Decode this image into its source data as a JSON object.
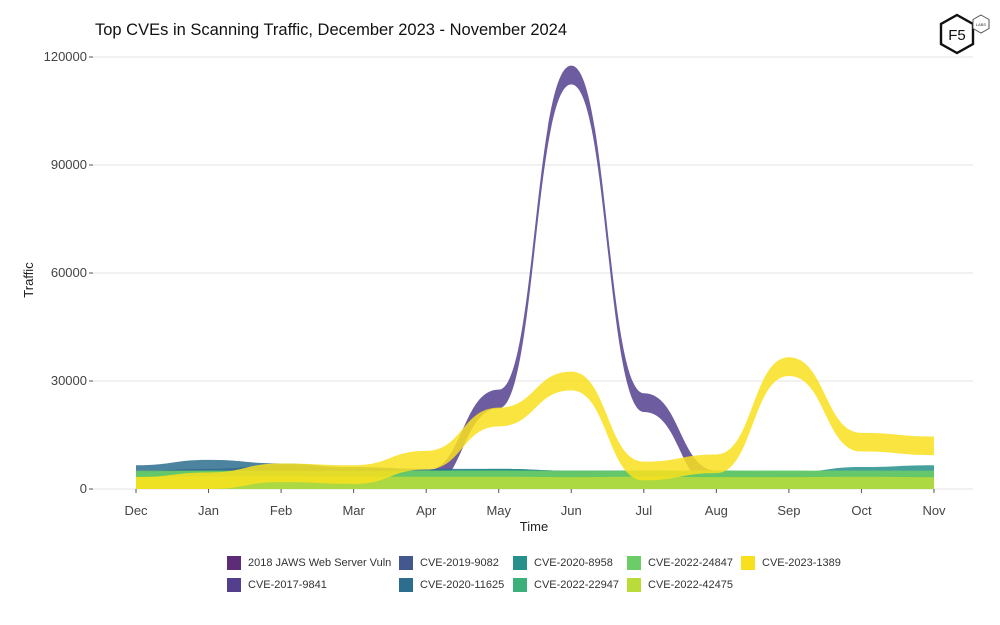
{
  "brand": {
    "logo_text": "F5",
    "logo_subtext": "LABS"
  },
  "chart_data": {
    "type": "area",
    "title": "Top CVEs in Scanning Traffic, December 2023 - November 2024",
    "xlabel": "Time",
    "ylabel": "Traffic",
    "ylim": [
      0,
      120000
    ],
    "yticks": [
      "0",
      "30000",
      "60000",
      "90000",
      "120000"
    ],
    "grid": true,
    "legend_position": "bottom",
    "categories": [
      "Dec",
      "Jan",
      "Feb",
      "Mar",
      "Apr",
      "May",
      "Jun",
      "Jul",
      "Aug",
      "Sep",
      "Oct",
      "Nov"
    ],
    "series": [
      {
        "name": "2018 JAWS Web Server Vuln",
        "color": "#5c2c76",
        "values": [
          1000,
          1500,
          2000,
          1500,
          1200,
          1000,
          900,
          1000,
          2500,
          1500,
          1000,
          800
        ]
      },
      {
        "name": "CVE-2017-9841",
        "color": "#533f8e",
        "values": [
          2500,
          3000,
          4000,
          3000,
          2500,
          25000,
          115000,
          24000,
          2500,
          2000,
          1500,
          1200
        ]
      },
      {
        "name": "CVE-2019-9082",
        "color": "#42588f",
        "values": [
          1500,
          2000,
          1500,
          1200,
          1000,
          1500,
          1000,
          1200,
          1000,
          800,
          700,
          600
        ]
      },
      {
        "name": "CVE-2020-11625",
        "color": "#2d6e8e",
        "values": [
          4000,
          5500,
          4500,
          3500,
          3000,
          3000,
          2500,
          2500,
          2000,
          2000,
          1800,
          1500
        ]
      },
      {
        "name": "CVE-2020-8958",
        "color": "#26918b",
        "values": [
          2000,
          2500,
          2000,
          2000,
          2500,
          3000,
          2500,
          2500,
          2000,
          2000,
          3500,
          4000
        ]
      },
      {
        "name": "CVE-2022-22947",
        "color": "#3bb07a",
        "values": [
          2000,
          2500,
          2000,
          2000,
          2500,
          2500,
          2000,
          2500,
          2500,
          2500,
          2000,
          2000
        ]
      },
      {
        "name": "CVE-2022-24847",
        "color": "#6ccc66",
        "values": [
          2500,
          2500,
          2500,
          2500,
          2500,
          2500,
          2500,
          2500,
          2500,
          2500,
          2500,
          2500
        ]
      },
      {
        "name": "CVE-2022-42475",
        "color": "#b9dc3a",
        "values": [
          800,
          900,
          900,
          800,
          800,
          800,
          700,
          800,
          700,
          700,
          800,
          700
        ]
      },
      {
        "name": "CVE-2023-1389",
        "color": "#f9e01f",
        "values": [
          700,
          2000,
          4500,
          4000,
          8000,
          20000,
          30000,
          5000,
          7000,
          34000,
          13000,
          12000
        ]
      }
    ],
    "legend_order": [
      "2018 JAWS Web Server Vuln",
      "CVE-2019-9082",
      "CVE-2020-8958",
      "CVE-2022-24847",
      "CVE-2023-1389",
      "CVE-2017-9841",
      "CVE-2020-11625",
      "CVE-2022-22947",
      "CVE-2022-42475"
    ]
  }
}
